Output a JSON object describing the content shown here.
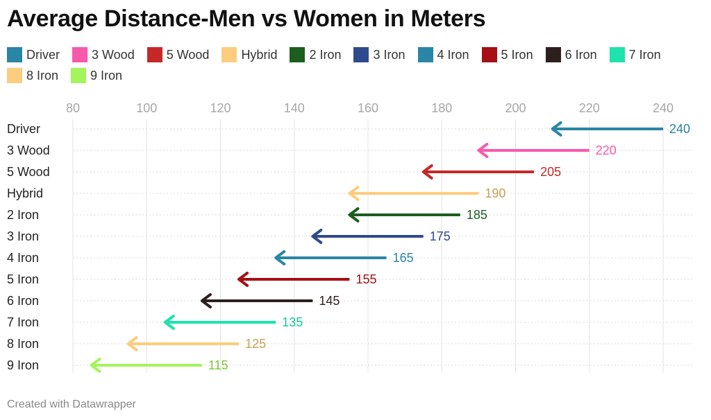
{
  "title": "Average Distance-Men vs Women in Meters",
  "footer": "Created with Datawrapper",
  "chart_data": {
    "type": "arrow",
    "title": "Average Distance-Men vs Women in Meters",
    "xlim": [
      80,
      240
    ],
    "xticks": [
      80,
      100,
      120,
      140,
      160,
      180,
      200,
      220,
      240
    ],
    "grid": true,
    "legend_position": "top-left",
    "series": [
      {
        "name": "Driver",
        "start": 240,
        "end": 210,
        "label": "240",
        "color": "#2a85a6",
        "label_color": "#2a85a6"
      },
      {
        "name": "3 Wood",
        "start": 220,
        "end": 190,
        "label": "220",
        "color": "#f75aac",
        "label_color": "#f75aac"
      },
      {
        "name": "5 Wood",
        "start": 205,
        "end": 175,
        "label": "205",
        "color": "#c62828",
        "label_color": "#c62828"
      },
      {
        "name": "Hybrid",
        "start": 190,
        "end": 155,
        "label": "190",
        "color": "#fccd7e",
        "label_color": "#c9a04f"
      },
      {
        "name": "2 Iron",
        "start": 185,
        "end": 155,
        "label": "185",
        "color": "#1b5e20",
        "label_color": "#1b5e20"
      },
      {
        "name": "3 Iron",
        "start": 175,
        "end": 145,
        "label": "175",
        "color": "#2f4a8c",
        "label_color": "#2f4a8c"
      },
      {
        "name": "4 Iron",
        "start": 165,
        "end": 135,
        "label": "165",
        "color": "#2a85a6",
        "label_color": "#2a85a6"
      },
      {
        "name": "5 Iron",
        "start": 155,
        "end": 125,
        "label": "155",
        "color": "#a50f15",
        "label_color": "#a50f15"
      },
      {
        "name": "6 Iron",
        "start": 145,
        "end": 115,
        "label": "145",
        "color": "#2e1f1f",
        "label_color": "#2e1f1f"
      },
      {
        "name": "7 Iron",
        "start": 135,
        "end": 105,
        "label": "135",
        "color": "#1de3ac",
        "label_color": "#16c997"
      },
      {
        "name": "8 Iron",
        "start": 125,
        "end": 95,
        "label": "125",
        "color": "#fccd7e",
        "label_color": "#c9a04f"
      },
      {
        "name": "9 Iron",
        "start": 115,
        "end": 85,
        "label": "115",
        "color": "#a2f55a",
        "label_color": "#77c733"
      }
    ]
  }
}
